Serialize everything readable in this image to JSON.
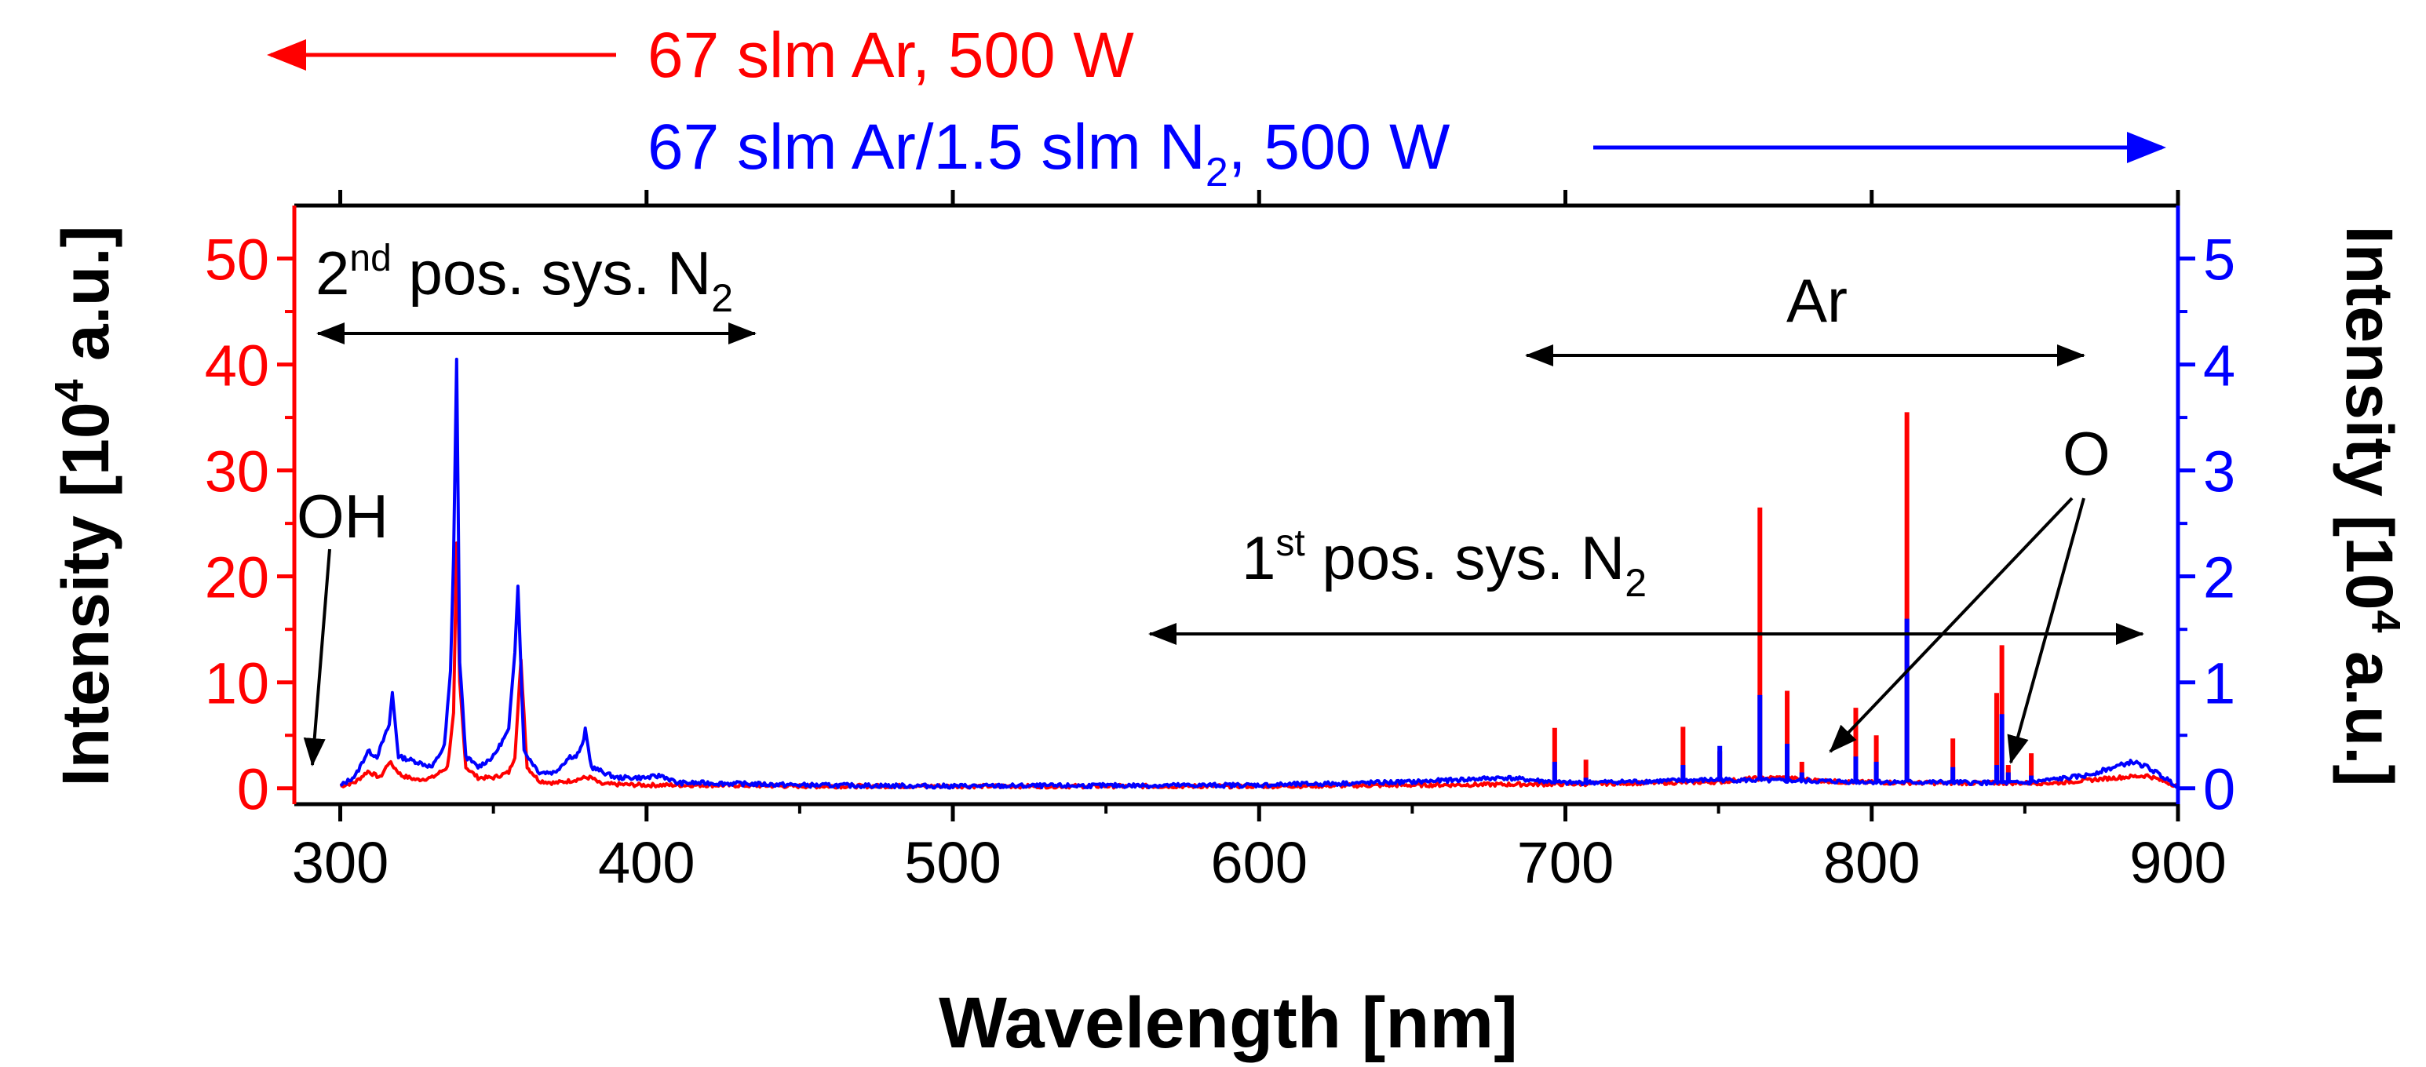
{
  "chart_data": {
    "type": "line",
    "title": "",
    "xlabel": "Wavelength [nm]",
    "ylabel_left": {
      "base": "Intensity [10",
      "exp": "4",
      "tail": " a.u.]"
    },
    "ylabel_right": {
      "base": "Intensity [10",
      "exp": "4",
      "tail": " a.u.]"
    },
    "xlim": [
      285,
      900
    ],
    "ylim_left": [
      -1.5,
      55
    ],
    "ylim_right": [
      -0.15,
      5.5
    ],
    "x_ticks": [
      300,
      400,
      500,
      600,
      700,
      800,
      900
    ],
    "y_ticks_left": [
      0,
      10,
      20,
      30,
      40,
      50
    ],
    "y_ticks_right": [
      0,
      1,
      2,
      3,
      4,
      5
    ],
    "colors": {
      "left_axis": "#ff0000",
      "right_axis": "#0000ff",
      "annotation": "#000000"
    },
    "legend": {
      "red": {
        "text": "67 slm Ar, 500 W",
        "axis": "left"
      },
      "blue": {
        "base": "67 slm Ar/1.5 slm N",
        "sub": "2",
        "tail": ", 500 W",
        "axis": "right"
      }
    },
    "annotations": {
      "second_pos": {
        "sup_num": "2",
        "sup": "nd",
        "base": " pos. sys. N",
        "sub": "2",
        "range_nm": [
          305,
          450
        ]
      },
      "first_pos": {
        "sup_num": "1",
        "sup": "st",
        "base": " pos. sys. N",
        "sub": "2",
        "range_nm": [
          575,
          890
        ]
      },
      "ar": {
        "text": "Ar",
        "range_nm": [
          695,
          870
        ]
      },
      "oh": {
        "text": "OH",
        "points_to_nm": 309
      },
      "o": {
        "text": "O",
        "points_to_nm": [
          777,
          845
        ]
      }
    },
    "series": [
      {
        "name": "67 slm Ar, 500 W",
        "axis": "left",
        "color": "#ff0000",
        "baseline": [
          [
            300,
            0.2
          ],
          [
            305,
            0.6
          ],
          [
            309,
            1.6
          ],
          [
            313,
            1.0
          ],
          [
            316,
            2.5
          ],
          [
            320,
            1.2
          ],
          [
            325,
            0.8
          ],
          [
            330,
            1.0
          ],
          [
            335,
            2.0
          ],
          [
            337,
            7.0
          ],
          [
            338,
            23.0
          ],
          [
            339,
            10.0
          ],
          [
            341,
            2.0
          ],
          [
            345,
            1.0
          ],
          [
            350,
            1.0
          ],
          [
            355,
            1.5
          ],
          [
            357,
            3.0
          ],
          [
            359,
            12.0
          ],
          [
            361,
            2.0
          ],
          [
            365,
            0.7
          ],
          [
            370,
            0.5
          ],
          [
            375,
            0.7
          ],
          [
            380,
            1.0
          ],
          [
            382,
            1.0
          ],
          [
            385,
            0.4
          ],
          [
            400,
            0.3
          ],
          [
            420,
            0.3
          ],
          [
            450,
            0.2
          ],
          [
            500,
            0.2
          ],
          [
            600,
            0.2
          ],
          [
            650,
            0.3
          ],
          [
            700,
            0.4
          ],
          [
            750,
            0.6
          ],
          [
            760,
            0.9
          ],
          [
            770,
            1.0
          ],
          [
            790,
            0.6
          ],
          [
            820,
            0.5
          ],
          [
            860,
            0.5
          ],
          [
            880,
            1.0
          ],
          [
            890,
            1.2
          ],
          [
            900,
            0.2
          ]
        ],
        "peaks": [
          [
            696.5,
            5.7
          ],
          [
            706.7,
            2.7
          ],
          [
            738.4,
            5.8
          ],
          [
            750.4,
            3.5
          ],
          [
            763.5,
            26.5
          ],
          [
            772.4,
            9.2
          ],
          [
            777.2,
            2.5
          ],
          [
            794.8,
            7.6
          ],
          [
            801.5,
            5.0
          ],
          [
            811.5,
            35.5
          ],
          [
            826.5,
            4.7
          ],
          [
            840.8,
            9.0
          ],
          [
            842.5,
            13.5
          ],
          [
            844.6,
            2.2
          ],
          [
            852.1,
            3.3
          ]
        ]
      },
      {
        "name": "67 slm Ar/1.5 slm N2, 500 W",
        "axis": "right",
        "color": "#0000ff",
        "baseline": [
          [
            300,
            0.02
          ],
          [
            305,
            0.12
          ],
          [
            309,
            0.35
          ],
          [
            312,
            0.3
          ],
          [
            316,
            0.6
          ],
          [
            317,
            0.9
          ],
          [
            319,
            0.3
          ],
          [
            325,
            0.25
          ],
          [
            330,
            0.2
          ],
          [
            334,
            0.4
          ],
          [
            336,
            1.1
          ],
          [
            337,
            2.2
          ],
          [
            338,
            4.05
          ],
          [
            339,
            1.2
          ],
          [
            341,
            0.3
          ],
          [
            345,
            0.2
          ],
          [
            350,
            0.3
          ],
          [
            354,
            0.5
          ],
          [
            355,
            0.55
          ],
          [
            357,
            1.3
          ],
          [
            358,
            1.92
          ],
          [
            360,
            0.35
          ],
          [
            365,
            0.15
          ],
          [
            370,
            0.15
          ],
          [
            375,
            0.3
          ],
          [
            377,
            0.3
          ],
          [
            379,
            0.4
          ],
          [
            380,
            0.55
          ],
          [
            382,
            0.2
          ],
          [
            390,
            0.1
          ],
          [
            400,
            0.1
          ],
          [
            405,
            0.12
          ],
          [
            410,
            0.05
          ],
          [
            420,
            0.05
          ],
          [
            450,
            0.03
          ],
          [
            500,
            0.02
          ],
          [
            600,
            0.03
          ],
          [
            650,
            0.06
          ],
          [
            680,
            0.1
          ],
          [
            700,
            0.05
          ],
          [
            750,
            0.08
          ],
          [
            800,
            0.06
          ],
          [
            850,
            0.05
          ],
          [
            870,
            0.12
          ],
          [
            885,
            0.25
          ],
          [
            890,
            0.2
          ],
          [
            900,
            0.02
          ]
        ],
        "peaks": [
          [
            696.5,
            0.25
          ],
          [
            706.7,
            0.1
          ],
          [
            738.4,
            0.22
          ],
          [
            750.4,
            0.4
          ],
          [
            763.5,
            0.88
          ],
          [
            772.4,
            0.42
          ],
          [
            777.2,
            0.15
          ],
          [
            794.8,
            0.3
          ],
          [
            801.5,
            0.25
          ],
          [
            811.5,
            1.6
          ],
          [
            826.5,
            0.2
          ],
          [
            840.8,
            0.22
          ],
          [
            842.5,
            0.7
          ],
          [
            844.6,
            0.15
          ],
          [
            852.1,
            0.12
          ]
        ]
      }
    ]
  }
}
